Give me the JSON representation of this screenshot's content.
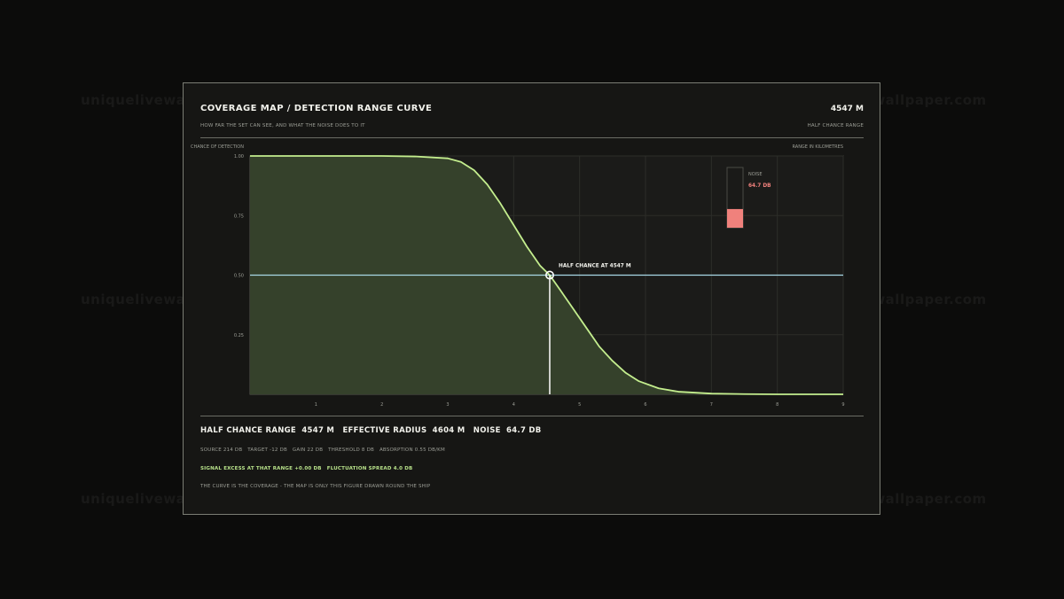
{
  "header": {
    "title": "COVERAGE MAP / DETECTION RANGE CURVE",
    "value": "4547 M",
    "subtitle": "HOW FAR THE SET CAN SEE, AND WHAT THE NOISE DOES TO IT",
    "value_caption": "HALF CHANCE RANGE"
  },
  "chart_data": {
    "type": "line",
    "ylabel": "CHANCE OF DETECTION",
    "xlabel": "RANGE IN KILOMETRES",
    "xlim": [
      0,
      9
    ],
    "ylim": [
      0,
      1
    ],
    "x_ticks": [
      1,
      2,
      3,
      4,
      5,
      6,
      7,
      8,
      9
    ],
    "y_ticks": [
      "1.00",
      "0.75",
      "0.50",
      "0.25"
    ],
    "y_tick_values": [
      1.0,
      0.75,
      0.5,
      0.25
    ],
    "grid": true,
    "series": [
      {
        "x": [
          0,
          1,
          2,
          2.5,
          3,
          3.2,
          3.4,
          3.6,
          3.8,
          4.0,
          4.2,
          4.4,
          4.547,
          4.7,
          4.9,
          5.1,
          5.3,
          5.5,
          5.7,
          5.9,
          6.2,
          6.5,
          7.0,
          7.5,
          8.0,
          9.0
        ],
        "y": [
          1.0,
          1.0,
          1.0,
          0.998,
          0.99,
          0.975,
          0.94,
          0.88,
          0.8,
          0.71,
          0.62,
          0.54,
          0.5,
          0.44,
          0.36,
          0.28,
          0.2,
          0.14,
          0.09,
          0.055,
          0.025,
          0.011,
          0.003,
          0.001,
          0.0,
          0.0
        ]
      }
    ],
    "threshold": 0.5,
    "half_range_km": 4.547,
    "annotation": "HALF CHANCE AT 4547 M",
    "colors": {
      "curve": "#c4ee8e",
      "fill": "#35412b",
      "threshold": "#a9d8e6",
      "marker": "#ffffff",
      "noise_fill": "#f0817c"
    }
  },
  "noise_gauge": {
    "label": "NOISE",
    "value": "64.7 DB",
    "level_fraction": 0.31
  },
  "summary": [
    {
      "label": "HALF CHANCE RANGE",
      "value": "4547 M"
    },
    {
      "label": "EFFECTIVE RADIUS",
      "value": "4604 M"
    },
    {
      "label": "NOISE",
      "value": "64.7 DB"
    }
  ],
  "params": [
    "SOURCE 214 DB",
    "TARGET -12 DB",
    "GAIN 22 DB",
    "THRESHOLD 8 DB",
    "ABSORPTION 0.55 DB/KM"
  ],
  "excess": [
    "SIGNAL EXCESS AT THAT RANGE +0.00 DB",
    "FLUCTUATION SPREAD 4.0 DB"
  ],
  "footnote": "THE CURVE IS THE COVERAGE - THE MAP IS ONLY THIS FIGURE DRAWN ROUND THE SHIP",
  "watermark": "uniquelivewallpaper.com"
}
